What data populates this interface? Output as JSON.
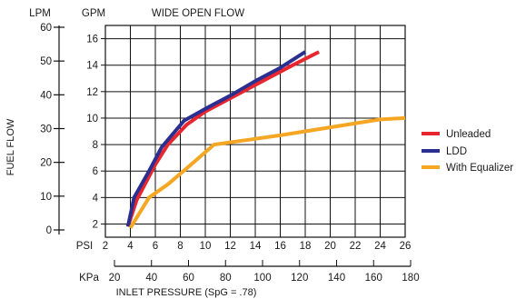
{
  "chart_data": {
    "type": "line",
    "title": "WIDE OPEN FLOW",
    "ylabel": "FUEL FLOW",
    "xlabel": "INLET PRESSURE (SpG = .78)",
    "y_units": {
      "lpm": "LPM",
      "gpm": "GPM"
    },
    "x_units": {
      "psi": "PSI",
      "kpa": "KPa"
    },
    "gpm_ticks": [
      2,
      4,
      6,
      8,
      10,
      12,
      14,
      16
    ],
    "lpm_ticks": [
      0,
      10,
      20,
      30,
      40,
      50,
      60
    ],
    "psi_ticks": [
      2,
      4,
      6,
      8,
      10,
      12,
      14,
      16,
      18,
      20,
      22,
      24,
      26
    ],
    "kpa_ticks": [
      20,
      40,
      60,
      80,
      100,
      120,
      140,
      160,
      180
    ],
    "xlim": [
      2,
      26
    ],
    "ylim": [
      1,
      17
    ],
    "grid": true,
    "legend_position": "right",
    "series": [
      {
        "name": "Unleaded",
        "color": "#e8262f",
        "points": [
          [
            3.8,
            1.8
          ],
          [
            4.5,
            3.8
          ],
          [
            6,
            6.5
          ],
          [
            7,
            8
          ],
          [
            8.5,
            9.5
          ],
          [
            10,
            10.5
          ],
          [
            12,
            11.5
          ],
          [
            14,
            12.5
          ],
          [
            17,
            14
          ],
          [
            19.1,
            15
          ]
        ]
      },
      {
        "name": "LDD",
        "color": "#2b2f8f",
        "points": [
          [
            3.8,
            1.8
          ],
          [
            4.3,
            4
          ],
          [
            5.5,
            6
          ],
          [
            6.5,
            7.8
          ],
          [
            8.3,
            9.8
          ],
          [
            10,
            10.7
          ],
          [
            12,
            11.7
          ],
          [
            14,
            12.8
          ],
          [
            16,
            13.8
          ],
          [
            18,
            15
          ]
        ]
      },
      {
        "name": "With Equalizer",
        "color": "#f5a623",
        "points": [
          [
            4,
            1.7
          ],
          [
            5.5,
            4
          ],
          [
            7,
            5
          ],
          [
            8.5,
            6.2
          ],
          [
            10.7,
            8
          ],
          [
            13,
            8.3
          ],
          [
            16,
            8.7
          ],
          [
            20,
            9.3
          ],
          [
            24,
            9.9
          ],
          [
            26,
            10
          ]
        ]
      }
    ]
  }
}
